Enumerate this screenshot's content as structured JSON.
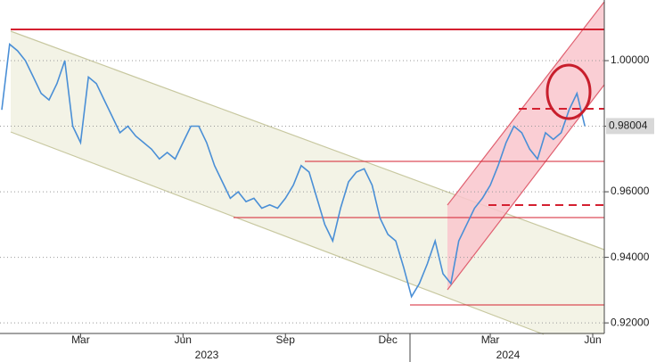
{
  "chart_data": {
    "type": "line",
    "categories": [
      null,
      null,
      null,
      null,
      null,
      null,
      null,
      null,
      null,
      null,
      "Mar",
      null,
      null,
      null,
      null,
      null,
      null,
      null,
      null,
      null,
      null,
      null,
      null,
      "Jun",
      null,
      null,
      null,
      null,
      null,
      null,
      null,
      null,
      null,
      null,
      null,
      null,
      "Sep",
      null,
      null,
      null,
      null,
      null,
      null,
      null,
      null,
      null,
      null,
      null,
      null,
      "Dec",
      null,
      null,
      null,
      null,
      null,
      null,
      null,
      null,
      null,
      null,
      null,
      null,
      "Mar",
      null,
      null,
      null,
      null,
      null,
      null,
      null,
      null,
      null,
      null,
      null,
      null,
      "Jun"
    ],
    "year_labels": [
      "2023",
      "2024"
    ],
    "series": [
      {
        "color": "#4a8fd6",
        "values": [
          0.985,
          1.005,
          1.003,
          1.0,
          0.995,
          0.99,
          0.988,
          0.993,
          1.0,
          0.98,
          0.975,
          0.995,
          0.993,
          0.988,
          0.983,
          0.978,
          0.98,
          0.977,
          0.975,
          0.973,
          0.97,
          0.972,
          0.97,
          0.975,
          0.98,
          0.98,
          0.975,
          0.968,
          0.963,
          0.958,
          0.96,
          0.957,
          0.958,
          0.955,
          0.956,
          0.955,
          0.958,
          0.962,
          0.968,
          0.966,
          0.958,
          0.95,
          0.945,
          0.955,
          0.963,
          0.966,
          0.967,
          0.962,
          0.952,
          0.947,
          0.945,
          0.937,
          0.928,
          0.932,
          0.938,
          0.945,
          0.935,
          0.932,
          0.945,
          0.95,
          0.955,
          0.958,
          0.962,
          0.968,
          0.975,
          0.98,
          0.978,
          0.973,
          0.97,
          0.978,
          0.976,
          0.978,
          0.985,
          0.99,
          0.98004,
          null
        ]
      }
    ],
    "last_price": {
      "value": 0.98004,
      "label": "0.98004"
    },
    "ylim": [
      0.9165,
      1.0185
    ],
    "yticks": [
      {
        "value": 0.92,
        "label": "0.92000"
      },
      {
        "value": 0.94,
        "label": "0.94000"
      },
      {
        "value": 0.96,
        "label": "0.96000"
      },
      {
        "value": 0.98,
        "label": "0.98000"
      },
      {
        "value": 1.0,
        "label": "1.00000"
      }
    ],
    "grid": true
  }
}
